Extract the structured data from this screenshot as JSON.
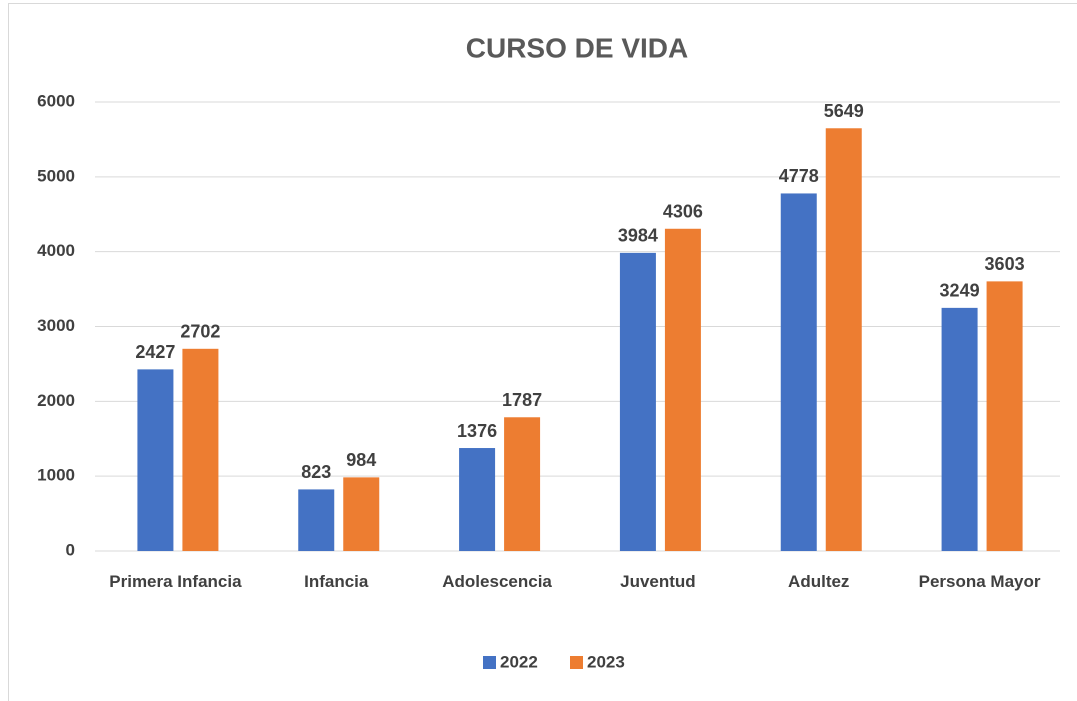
{
  "chart_data": {
    "type": "bar",
    "title": "CURSO DE VIDA",
    "categories": [
      "Primera Infancia",
      "Infancia",
      "Adolescencia",
      "Juventud",
      "Adultez",
      "Persona Mayor"
    ],
    "series": [
      {
        "name": "2022",
        "color": "#4472c4",
        "values": [
          2427,
          823,
          1376,
          3984,
          4778,
          3249
        ]
      },
      {
        "name": "2023",
        "color": "#ed7d31",
        "values": [
          2702,
          984,
          1787,
          4306,
          5649,
          3603
        ]
      }
    ],
    "ylim": [
      0,
      6000
    ],
    "yticks": [
      0,
      1000,
      2000,
      3000,
      4000,
      5000,
      6000
    ],
    "grid": true,
    "legend": "bottom"
  }
}
